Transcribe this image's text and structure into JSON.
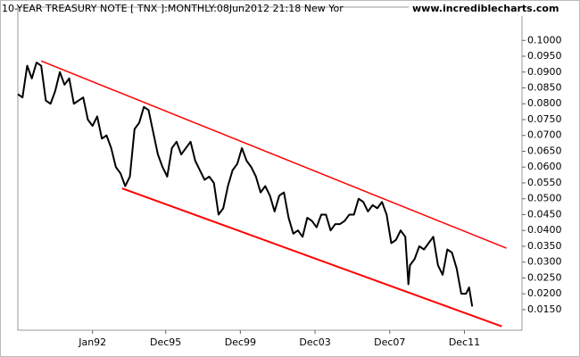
{
  "chart_data": {
    "type": "line",
    "title": "10-YEAR TREASURY NOTE [ TNX ]:MONTHLY:08Jun2012 21:18 New Yor",
    "watermark": "www.incrediblecharts.com",
    "x": [
      "Jan88",
      "Apr88",
      "Jul88",
      "Oct88",
      "Jan89",
      "Apr89",
      "Jul89",
      "Oct89",
      "Jan90",
      "Apr90",
      "Jul90",
      "Oct90",
      "Jan91",
      "Apr91",
      "Jul91",
      "Oct91",
      "Jan92",
      "Apr92",
      "Jul92",
      "Oct92",
      "Jan93",
      "Apr93",
      "Jul93",
      "Oct93",
      "Jan94",
      "Apr94",
      "Jul94",
      "Oct94",
      "Jan95",
      "Apr95",
      "Jul95",
      "Oct95",
      "Jan96",
      "Apr96",
      "Jul96",
      "Oct96",
      "Jan97",
      "Apr97",
      "Jul97",
      "Oct97",
      "Jan98",
      "Apr98",
      "Jul98",
      "Oct98",
      "Jan99",
      "Apr99",
      "Jul99",
      "Oct99",
      "Jan00",
      "Apr00",
      "Jul00",
      "Oct00",
      "Jan01",
      "Apr01",
      "Jul01",
      "Oct01",
      "Jan02",
      "Apr02",
      "Jul02",
      "Oct02",
      "Jan03",
      "Apr03",
      "Jul03",
      "Oct03",
      "Jan04",
      "Apr04",
      "Jul04",
      "Oct04",
      "Jan05",
      "Apr05",
      "Jul05",
      "Oct05",
      "Jan06",
      "Apr06",
      "Jul06",
      "Oct06",
      "Jan07",
      "Apr07",
      "Jul07",
      "Oct07",
      "Jan08",
      "Apr08",
      "Jul08",
      "Oct08",
      "Dec08",
      "Jan09",
      "Apr09",
      "Jul09",
      "Oct09",
      "Jan10",
      "Apr10",
      "Jul10",
      "Oct10",
      "Jan11",
      "Apr11",
      "Jul11",
      "Oct11",
      "Jan12",
      "Mar12",
      "May12"
    ],
    "series": [
      {
        "name": "TNX",
        "color": "#000000",
        "values": [
          0.083,
          0.082,
          0.092,
          0.088,
          0.093,
          0.092,
          0.081,
          0.08,
          0.084,
          0.09,
          0.086,
          0.088,
          0.08,
          0.081,
          0.082,
          0.075,
          0.073,
          0.076,
          0.069,
          0.07,
          0.066,
          0.06,
          0.058,
          0.054,
          0.057,
          0.072,
          0.074,
          0.079,
          0.078,
          0.071,
          0.064,
          0.06,
          0.057,
          0.066,
          0.068,
          0.064,
          0.066,
          0.068,
          0.062,
          0.059,
          0.056,
          0.057,
          0.055,
          0.045,
          0.047,
          0.054,
          0.059,
          0.061,
          0.066,
          0.062,
          0.06,
          0.057,
          0.052,
          0.054,
          0.051,
          0.046,
          0.051,
          0.052,
          0.044,
          0.039,
          0.04,
          0.038,
          0.044,
          0.043,
          0.041,
          0.045,
          0.045,
          0.04,
          0.042,
          0.042,
          0.043,
          0.045,
          0.045,
          0.05,
          0.049,
          0.046,
          0.048,
          0.047,
          0.049,
          0.045,
          0.036,
          0.037,
          0.04,
          0.038,
          0.023,
          0.029,
          0.031,
          0.035,
          0.034,
          0.036,
          0.038,
          0.029,
          0.026,
          0.034,
          0.033,
          0.028,
          0.02,
          0.02,
          0.022,
          0.016
        ]
      }
    ],
    "xlim": [
      "Jan88",
      "Jan15"
    ],
    "xticks": [
      "Jan92",
      "Dec95",
      "Dec99",
      "Dec03",
      "Dec07",
      "Dec11"
    ],
    "ylim": [
      0.0085,
      0.1105
    ],
    "yticks": [
      {
        "value": 0.015,
        "label": "0.0150"
      },
      {
        "value": 0.02,
        "label": "0.0200"
      },
      {
        "value": 0.025,
        "label": "0.0250"
      },
      {
        "value": 0.03,
        "label": "0.0300"
      },
      {
        "value": 0.035,
        "label": "0.0350"
      },
      {
        "value": 0.04,
        "label": "0.0400"
      },
      {
        "value": 0.045,
        "label": "0.0450"
      },
      {
        "value": 0.05,
        "label": "0.0500"
      },
      {
        "value": 0.055,
        "label": "0.0550"
      },
      {
        "value": 0.06,
        "label": "0.0600"
      },
      {
        "value": 0.065,
        "label": "0.0650"
      },
      {
        "value": 0.07,
        "label": "0.0700"
      },
      {
        "value": 0.075,
        "label": "0.0750"
      },
      {
        "value": 0.08,
        "label": "0.0800"
      },
      {
        "value": 0.085,
        "label": "0.0850"
      },
      {
        "value": 0.09,
        "label": "0.0900"
      },
      {
        "value": 0.095,
        "label": "0.0950"
      },
      {
        "value": 0.1,
        "label": "0.1000"
      }
    ],
    "trendlines": [
      {
        "color": "#ff0000",
        "from": {
          "x": "Apr89",
          "y": 0.0935
        },
        "to": {
          "x": "Mar14",
          "y": 0.0344
        }
      },
      {
        "color": "#ff0000",
        "from": {
          "x": "Aug93",
          "y": 0.0533
        },
        "to": {
          "x": "Dec13",
          "y": 0.0097
        }
      }
    ]
  }
}
